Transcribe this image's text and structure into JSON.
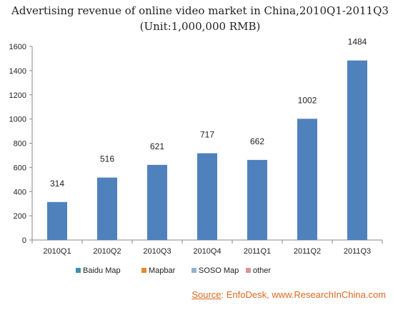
{
  "chart_data": {
    "type": "bar",
    "title": "Advertising revenue of online video market in China,2010Q1-2011Q3",
    "subtitle": "(Unit:1,000,000 RMB)",
    "categories": [
      "2010Q1",
      "2010Q2",
      "2010Q3",
      "2010Q4",
      "2011Q1",
      "2011Q2",
      "2011Q3"
    ],
    "values": [
      314,
      516,
      621,
      717,
      662,
      1002,
      1484
    ],
    "ylim": [
      0,
      1600
    ],
    "yticks": [
      0,
      200,
      400,
      600,
      800,
      1000,
      1200,
      1400,
      1600
    ],
    "grid": false,
    "bar_color": "#4f81bd",
    "legend_position": "bottom-left",
    "legend": [
      {
        "name": "Baidu Map",
        "color": "#3f8fb0"
      },
      {
        "name": "Mapbar",
        "color": "#e58a2c"
      },
      {
        "name": "SOSO Map",
        "color": "#96b1d8"
      },
      {
        "name": "other",
        "color": "#d99694"
      }
    ]
  },
  "source": {
    "label": "Source",
    "text": ": EnfoDesk, www.ResearchInChina.com",
    "color": "#e0681e"
  }
}
